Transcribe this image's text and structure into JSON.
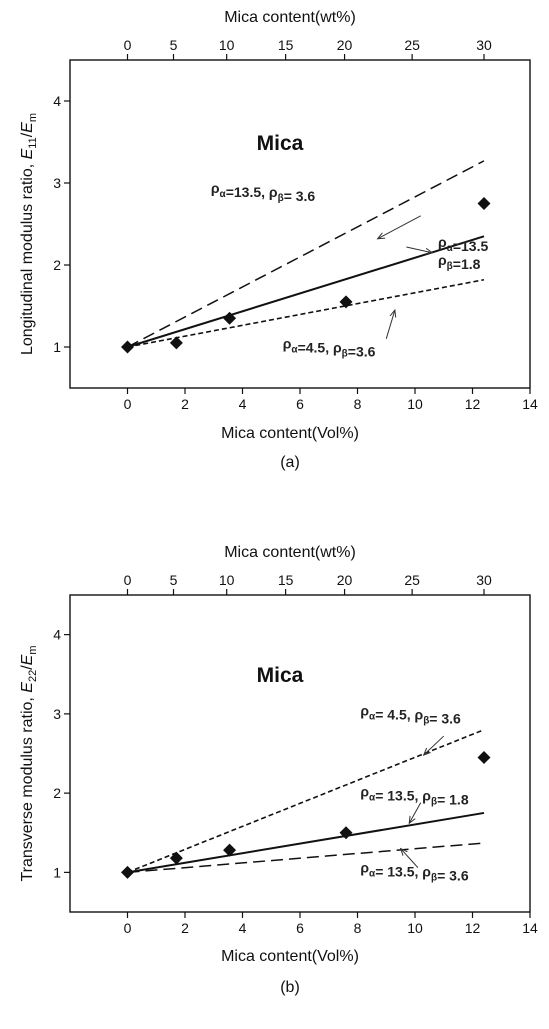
{
  "chart_data": [
    {
      "type": "line",
      "caption": "(a)",
      "title": "Mica",
      "xlabel": "Mica content(Vol%)",
      "ylabel": "Longitudinal modulus ratio, E11/Em",
      "ylabel_parts": {
        "main": "Longitudinal modulus ratio, ",
        "var": "E",
        "sub1": "11",
        "slash": "/",
        "var2": "E",
        "sub2": "m"
      },
      "top_xlabel": "Mica content(wt%)",
      "xlim": [
        -2,
        14
      ],
      "ylim": [
        0.5,
        4.5
      ],
      "xticks": [
        0,
        2,
        4,
        6,
        8,
        10,
        12,
        14
      ],
      "yticks": [
        1,
        2,
        3,
        4
      ],
      "top_ticks": [
        {
          "label": "0",
          "x": 0
        },
        {
          "label": "5",
          "x": 1.6
        },
        {
          "label": "10",
          "x": 3.45
        },
        {
          "label": "15",
          "x": 5.5
        },
        {
          "label": "20",
          "x": 7.55
        },
        {
          "label": "25",
          "x": 9.9
        },
        {
          "label": "30",
          "x": 12.4
        }
      ],
      "series": [
        {
          "style": "long-dash",
          "x": [
            0,
            12.4
          ],
          "y": [
            1.0,
            3.27
          ]
        },
        {
          "style": "solid",
          "x": [
            0,
            12.4
          ],
          "y": [
            1.0,
            2.35
          ]
        },
        {
          "style": "short-dash",
          "x": [
            0,
            12.4
          ],
          "y": [
            1.0,
            1.82
          ]
        },
        {
          "style": "markers",
          "x": [
            0,
            1.7,
            3.55,
            7.6,
            12.4
          ],
          "y": [
            1.0,
            1.05,
            1.35,
            1.55,
            2.75
          ]
        }
      ],
      "annotations": [
        {
          "line1": [
            "ρα=13.5, ρβ= 3.6"
          ],
          "tx": 2.9,
          "ty": 2.88,
          "ax": 10.2,
          "ay": 2.6,
          "hx": 8.7,
          "hy": 2.32
        },
        {
          "line1": [
            "ρα=13.5",
            "ρβ=1.8"
          ],
          "tx": 10.8,
          "ty": 2.22,
          "ax": 9.7,
          "ay": 2.22,
          "hx": 10.6,
          "hy": 2.15
        },
        {
          "line1": [
            "ρα=4.5, ρβ=3.6"
          ],
          "tx": 5.4,
          "ty": 0.98,
          "ax": 9.0,
          "ay": 1.1,
          "hx": 9.3,
          "hy": 1.45
        }
      ]
    },
    {
      "type": "line",
      "caption": "(b)",
      "title": "Mica",
      "xlabel": "Mica content(Vol%)",
      "ylabel": "Transverse modulus ratio, E22/Em",
      "ylabel_parts": {
        "main": "Transverse modulus ratio, ",
        "var": "E",
        "sub1": "22",
        "slash": "/",
        "var2": "E",
        "sub2": "m"
      },
      "top_xlabel": "Mica content(wt%)",
      "xlim": [
        -2,
        14
      ],
      "ylim": [
        0.5,
        4.5
      ],
      "xticks": [
        0,
        2,
        4,
        6,
        8,
        10,
        12,
        14
      ],
      "yticks": [
        1,
        2,
        3,
        4
      ],
      "top_ticks": [
        {
          "label": "0",
          "x": 0
        },
        {
          "label": "5",
          "x": 1.6
        },
        {
          "label": "10",
          "x": 3.45
        },
        {
          "label": "15",
          "x": 5.5
        },
        {
          "label": "20",
          "x": 7.55
        },
        {
          "label": "25",
          "x": 9.9
        },
        {
          "label": "30",
          "x": 12.4
        }
      ],
      "series": [
        {
          "style": "short-dash",
          "x": [
            0,
            12.4
          ],
          "y": [
            1.0,
            2.8
          ]
        },
        {
          "style": "solid",
          "x": [
            0,
            12.4
          ],
          "y": [
            1.0,
            1.75
          ]
        },
        {
          "style": "long-dash",
          "x": [
            0,
            12.4
          ],
          "y": [
            1.0,
            1.37
          ]
        },
        {
          "style": "markers",
          "x": [
            0,
            1.7,
            3.55,
            7.6,
            12.4
          ],
          "y": [
            1.0,
            1.18,
            1.28,
            1.5,
            2.45
          ]
        }
      ],
      "annotations": [
        {
          "line1": [
            "ρα= 4.5, ρβ= 3.6"
          ],
          "tx": 8.1,
          "ty": 2.98,
          "ax": 11.0,
          "ay": 2.72,
          "hx": 10.3,
          "hy": 2.48
        },
        {
          "line1": [
            "ρα= 13.5, ρβ= 1.8"
          ],
          "tx": 8.1,
          "ty": 1.96,
          "ax": 10.2,
          "ay": 1.88,
          "hx": 9.8,
          "hy": 1.62
        },
        {
          "line1": [
            "ρα= 13.5, ρβ= 3.6"
          ],
          "tx": 8.1,
          "ty": 1.0,
          "ax": 10.1,
          "ay": 1.06,
          "hx": 9.5,
          "hy": 1.3
        }
      ]
    }
  ]
}
